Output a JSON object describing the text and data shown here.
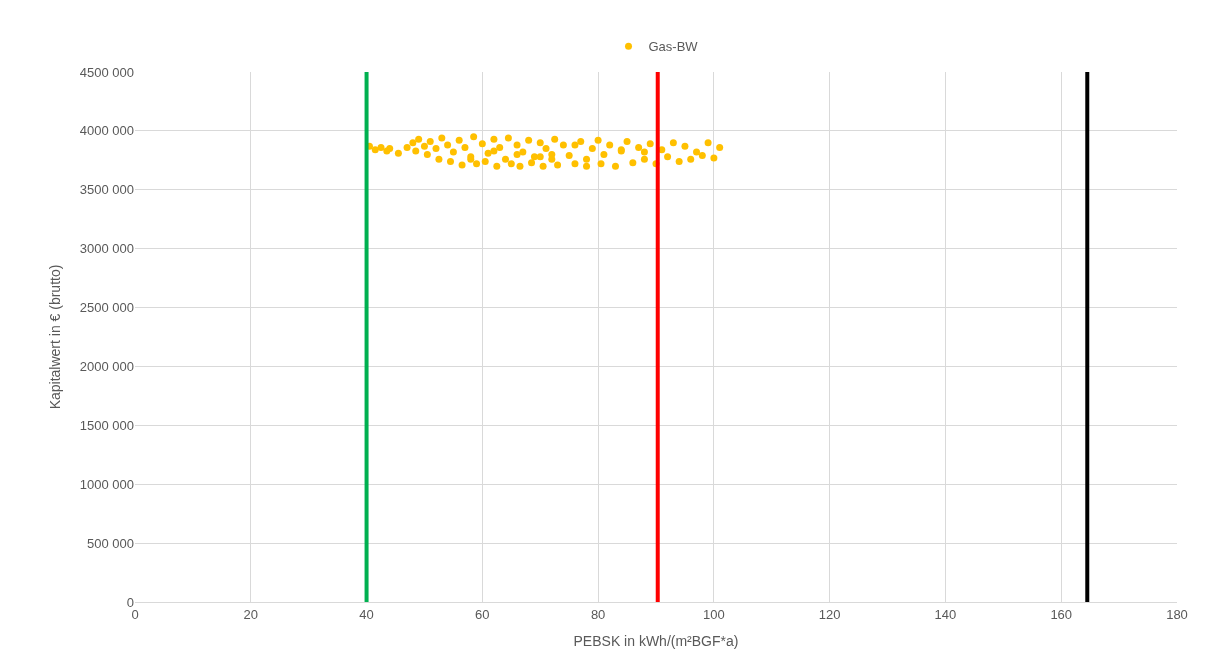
{
  "chart_data": {
    "type": "scatter",
    "xlabel": "PEBSK in kWh/(m²BGF*a)",
    "ylabel": "Kapitalwert in € (brutto)",
    "series": [
      {
        "name": "Gas-BW",
        "color": "#ffc000",
        "x": [
          40.5,
          41.5,
          42.5,
          43.5,
          44,
          45.5,
          47,
          48,
          48.5,
          49,
          50,
          50.5,
          51,
          52,
          52.5,
          53,
          54,
          54.5,
          55,
          56,
          56.5,
          57,
          58,
          58.5,
          59,
          60,
          60.5,
          61,
          62,
          62.5,
          63,
          64,
          64.5,
          65,
          66,
          66.5,
          67,
          68,
          68.5,
          69,
          70,
          70.5,
          71,
          72,
          72.5,
          73,
          74,
          75,
          76,
          77,
          78,
          79,
          80,
          80.5,
          81,
          82,
          83,
          84,
          85,
          86,
          87,
          88,
          89,
          90,
          91,
          92,
          93,
          94,
          95,
          96,
          97,
          98,
          99,
          100,
          101,
          66,
          72,
          78,
          84,
          58,
          62,
          70,
          76,
          88
        ],
        "values": [
          3870000,
          3840000,
          3860000,
          3830000,
          3850000,
          3810000,
          3860000,
          3900000,
          3830000,
          3930000,
          3870000,
          3800000,
          3910000,
          3850000,
          3760000,
          3940000,
          3880000,
          3740000,
          3820000,
          3920000,
          3710000,
          3860000,
          3780000,
          3950000,
          3720000,
          3890000,
          3740000,
          3810000,
          3930000,
          3700000,
          3860000,
          3760000,
          3940000,
          3720000,
          3880000,
          3700000,
          3820000,
          3920000,
          3730000,
          3780000,
          3900000,
          3700000,
          3850000,
          3760000,
          3930000,
          3710000,
          3880000,
          3790000,
          3720000,
          3910000,
          3700000,
          3850000,
          3920000,
          3720000,
          3800000,
          3880000,
          3700000,
          3830000,
          3910000,
          3730000,
          3860000,
          3760000,
          3890000,
          3720000,
          3840000,
          3780000,
          3900000,
          3740000,
          3870000,
          3760000,
          3820000,
          3790000,
          3900000,
          3770000,
          3860000,
          3800000,
          3800000,
          3760000,
          3840000,
          3760000,
          3830000,
          3780000,
          3880000,
          3820000
        ]
      }
    ],
    "xlim": [
      0,
      180
    ],
    "xticks": [
      0,
      20,
      40,
      60,
      80,
      100,
      120,
      140,
      160,
      180
    ],
    "ylim": [
      0,
      4500000
    ],
    "yticks": [
      {
        "value": 0,
        "label": "0"
      },
      {
        "value": 500000,
        "label": "500 000"
      },
      {
        "value": 1000000,
        "label": "1000 000"
      },
      {
        "value": 1500000,
        "label": "1500 000"
      },
      {
        "value": 2000000,
        "label": "2000 000"
      },
      {
        "value": 2500000,
        "label": "2500 000"
      },
      {
        "value": 3000000,
        "label": "3000 000"
      },
      {
        "value": 3500000,
        "label": "3500 000"
      },
      {
        "value": 4000000,
        "label": "4000 000"
      },
      {
        "value": 4500000,
        "label": "4500 000"
      }
    ],
    "ref_lines": [
      {
        "axis": "x",
        "value": 40,
        "color": "#00b050"
      },
      {
        "axis": "x",
        "value": 90.3,
        "color": "#ff0000"
      },
      {
        "axis": "x",
        "value": 164.5,
        "color": "#000000"
      }
    ],
    "grid": true,
    "legend": "top",
    "marker": "circle"
  }
}
